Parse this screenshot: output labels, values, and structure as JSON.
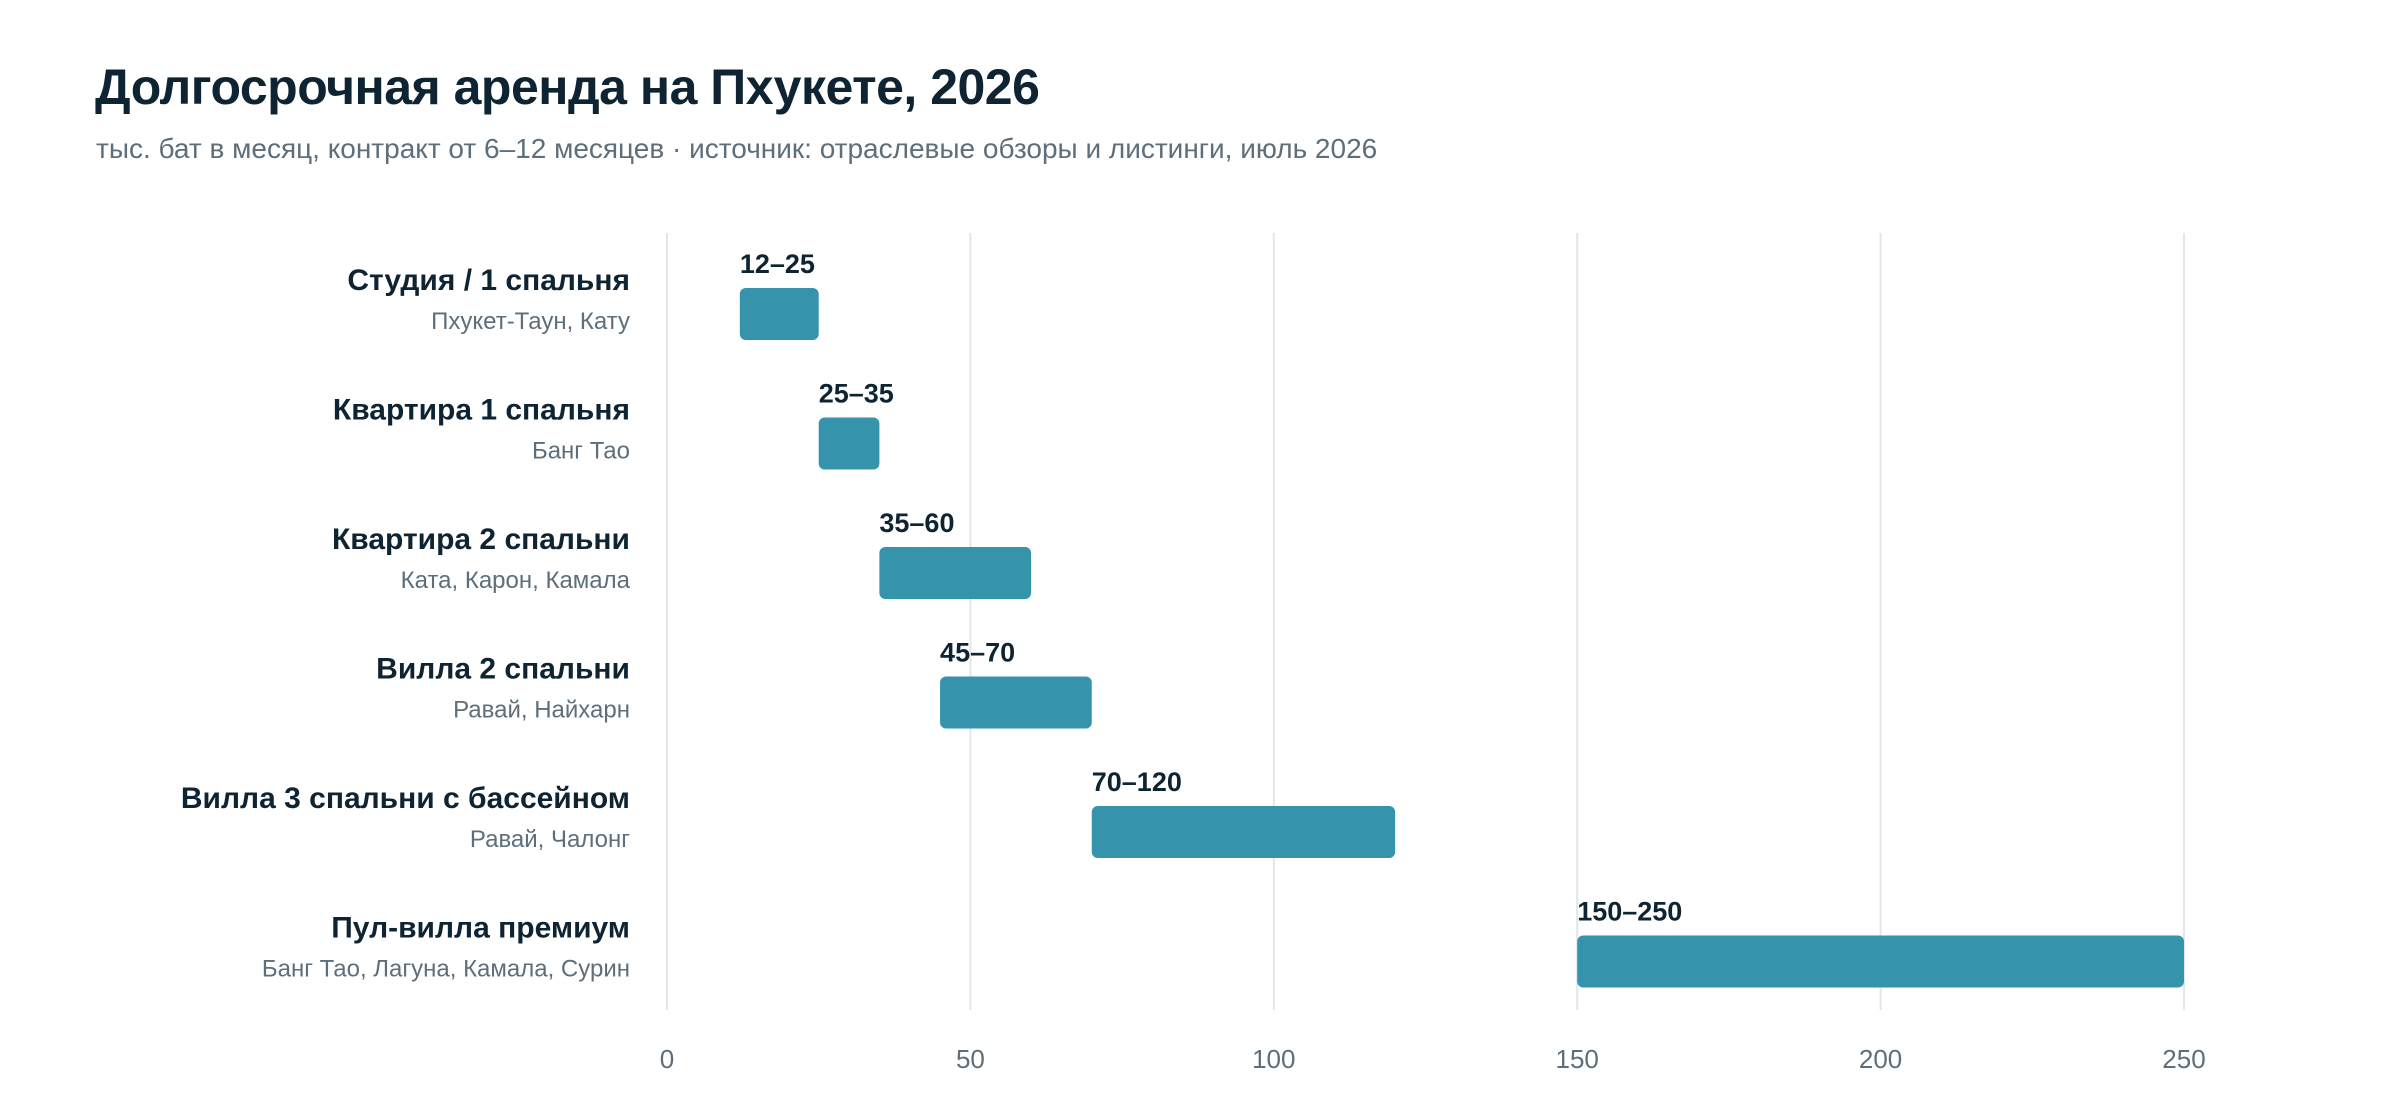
{
  "chart_data": {
    "type": "bar",
    "orientation": "horizontal",
    "title": "Долгосрочная аренда на Пхукете, 2026",
    "subtitle": "тыс. бат в месяц, контракт от 6–12 месяцев · источник: отраслевые обзоры и листинги, июль 2026",
    "xlim": [
      0,
      250
    ],
    "xticks": [
      0,
      50,
      100,
      150,
      200,
      250
    ],
    "grid": true,
    "bar_color": "#3593ac",
    "categories": [
      {
        "label": "Студия / 1 спальня",
        "sublabel": "Пхукет-Таун, Кату",
        "low": 12,
        "high": 25,
        "range_label": "12–25"
      },
      {
        "label": "Квартира 1 спальня",
        "sublabel": "Банг Тао",
        "low": 25,
        "high": 35,
        "range_label": "25–35"
      },
      {
        "label": "Квартира 2 спальни",
        "sublabel": "Ката, Карон, Камала",
        "low": 35,
        "high": 60,
        "range_label": "35–60"
      },
      {
        "label": "Вилла 2 спальни",
        "sublabel": "Равай, Найхарн",
        "low": 45,
        "high": 70,
        "range_label": "45–70"
      },
      {
        "label": "Вилла 3 спальни с бассейном",
        "sublabel": "Равай, Чалонг",
        "low": 70,
        "high": 120,
        "range_label": "70–120"
      },
      {
        "label": "Пул-вилла премиум",
        "sublabel": "Банг Тао, Лагуна, Камала, Сурин",
        "low": 150,
        "high": 250,
        "range_label": "150–250"
      }
    ]
  }
}
